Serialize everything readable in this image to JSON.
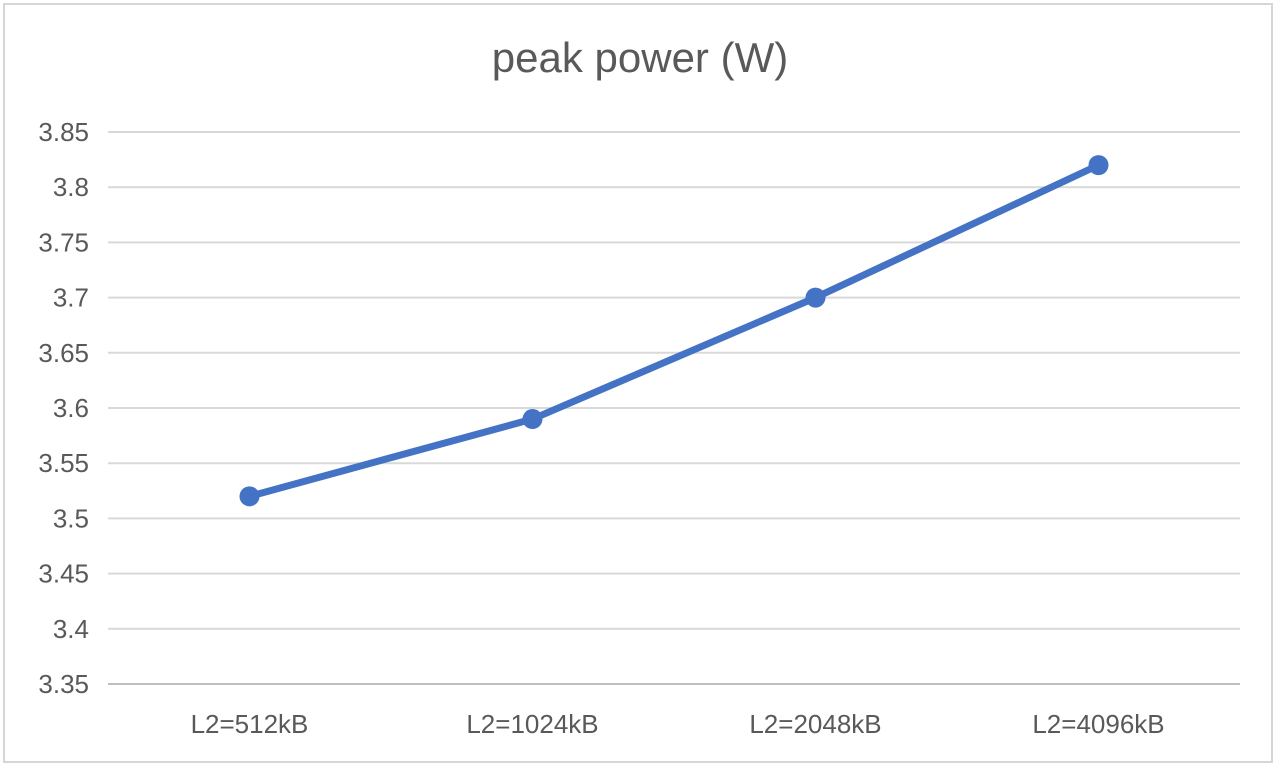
{
  "title": "peak power (W)",
  "chart_data": {
    "type": "line",
    "title": "peak power (W)",
    "categories": [
      "L2=512kB",
      "L2=1024kB",
      "L2=2048kB",
      "L2=4096kB"
    ],
    "values": [
      3.52,
      3.59,
      3.7,
      3.82
    ],
    "xlabel": "",
    "ylabel": "",
    "ylim": [
      3.35,
      3.85
    ],
    "ytick_step": 0.05,
    "ytick_labels": [
      "3.35",
      "3.4",
      "3.45",
      "3.5",
      "3.55",
      "3.6",
      "3.65",
      "3.7",
      "3.75",
      "3.8",
      "3.85"
    ],
    "grid": true,
    "legend": false,
    "marker": "circle",
    "line_color": "#4472C4",
    "marker_color": "#4472C4",
    "text_color": "#595959",
    "gridline_color": "#D9D9D9",
    "axis_line_color": "#BFBFBF",
    "background_color": "#FFFFFF"
  }
}
